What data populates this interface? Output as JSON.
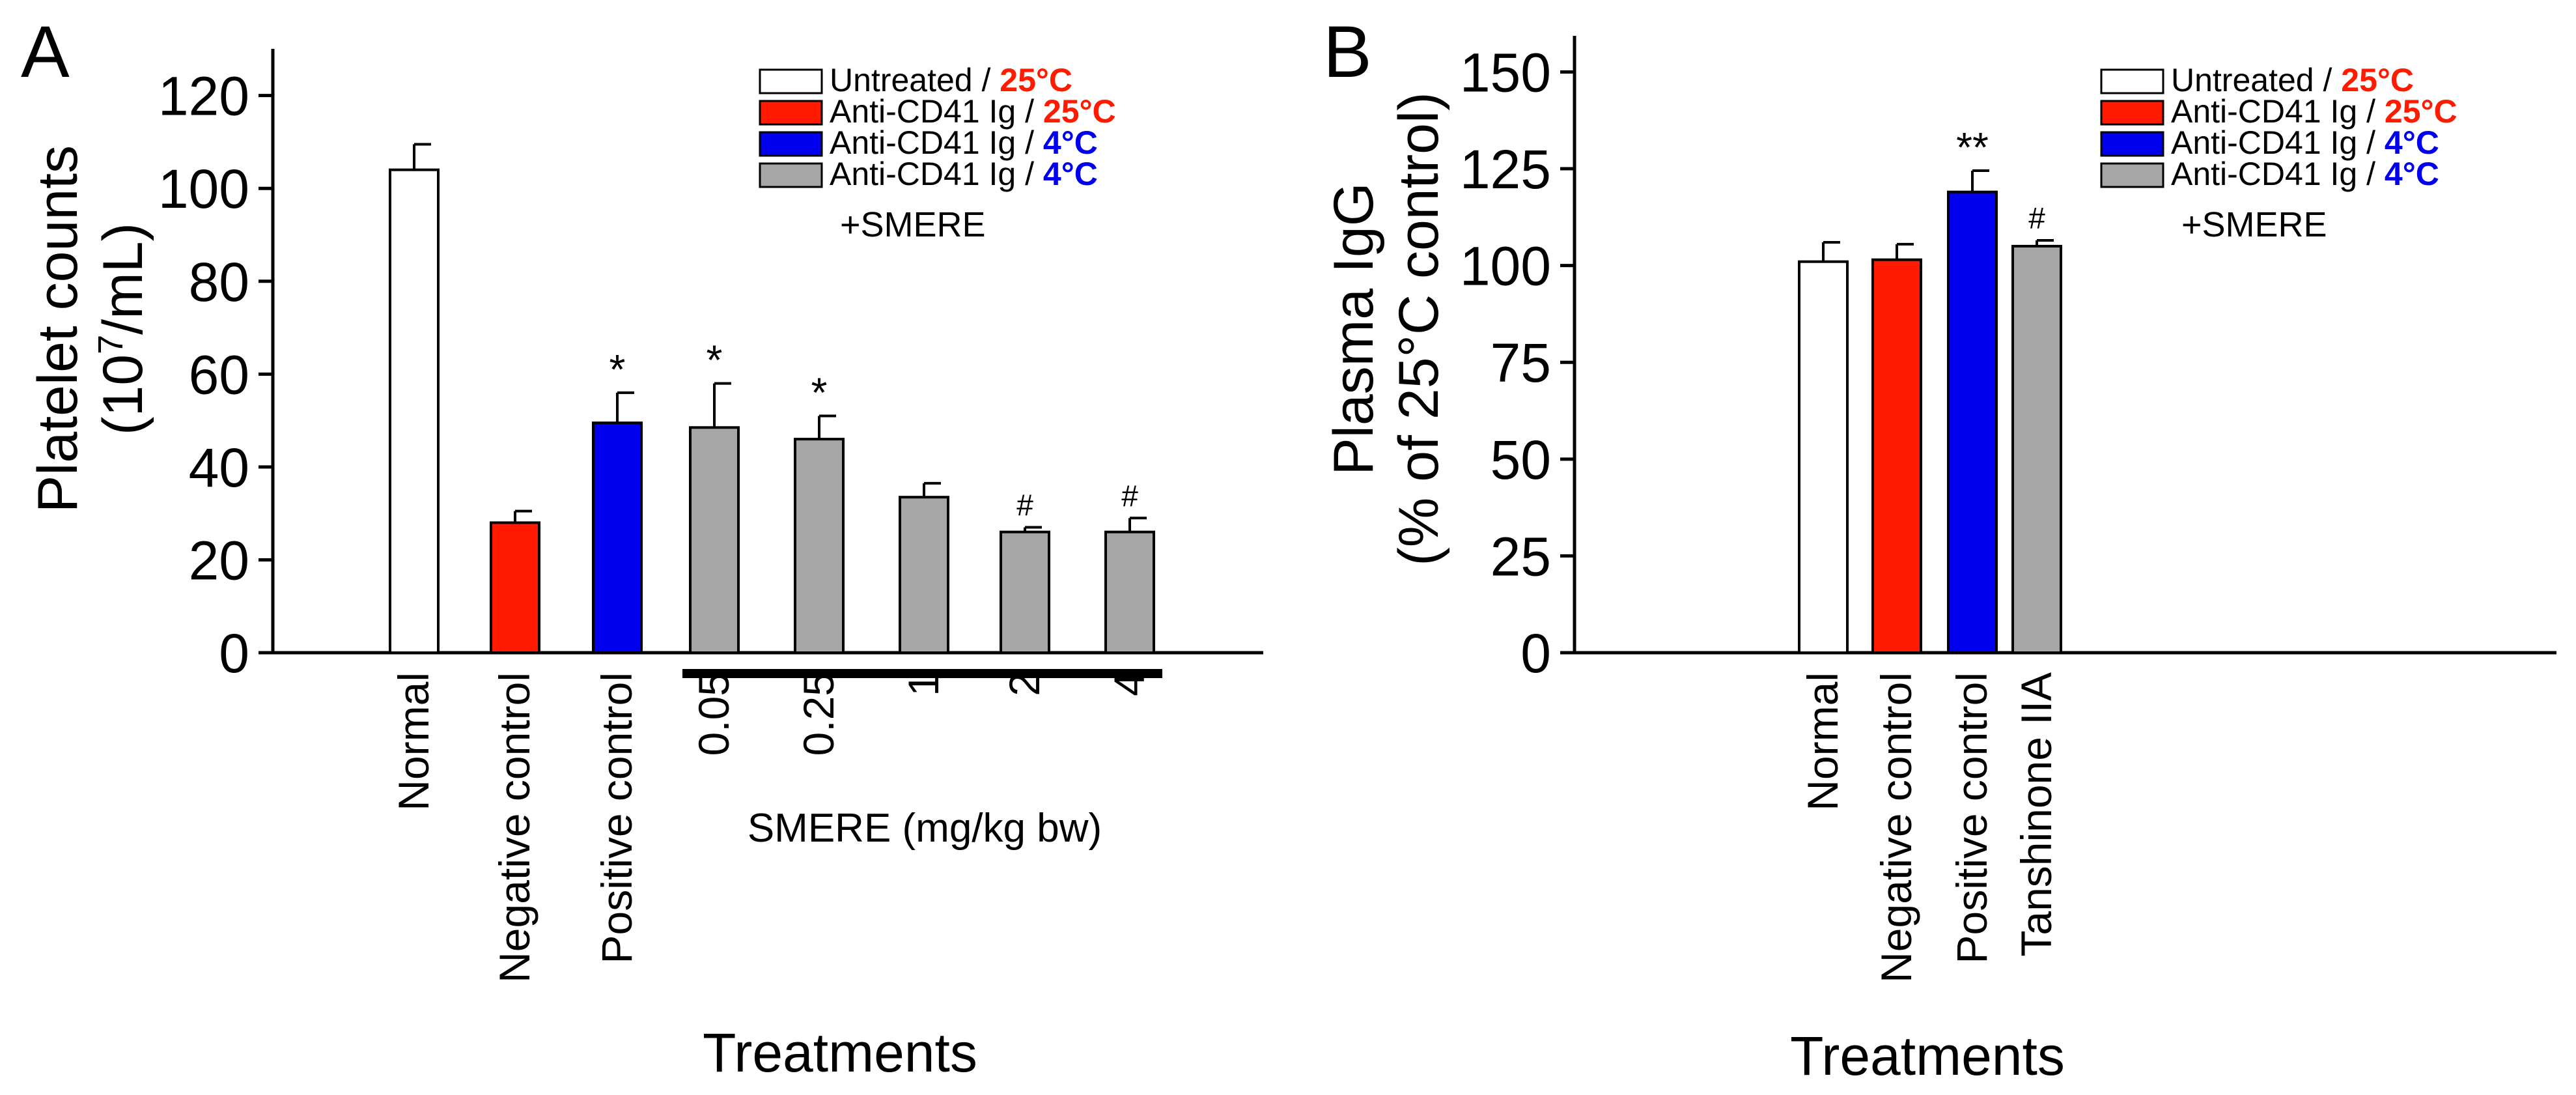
{
  "chart_data": [
    {
      "panel_label": "A",
      "type": "bar",
      "ylabel_line1": "Platelet counts",
      "ylabel_line2_pre": "(10",
      "ylabel_line2_sup": "7",
      "ylabel_line2_post": "/mL)",
      "xlabel": "Treatments",
      "ylim": [
        0,
        125
      ],
      "yticks": [
        "0",
        "20",
        "40",
        "60",
        "80",
        "100",
        "120"
      ],
      "categories": [
        "Normal",
        "Negative control",
        "Positive control",
        "0.05",
        "0.25",
        "1",
        "2",
        "4"
      ],
      "values": [
        104,
        28,
        49.5,
        48.5,
        46,
        33.5,
        26,
        26
      ],
      "errors": [
        5.5,
        2.5,
        6.5,
        9.5,
        5,
        3,
        1,
        3
      ],
      "colors": [
        "#ffffff",
        "#ff1a00",
        "#0000ee",
        "#a6a6a6",
        "#a6a6a6",
        "#a6a6a6",
        "#a6a6a6",
        "#a6a6a6"
      ],
      "annotations": [
        "",
        "",
        "*",
        "*",
        "*",
        "",
        "#",
        "#"
      ],
      "group_label": "SMERE (mg/kg bw)",
      "legend": [
        {
          "label": "Untreated /",
          "temp": "25°C",
          "temp_color": "#ff1a00",
          "fill": "#ffffff"
        },
        {
          "label": "Anti-CD41 Ig /",
          "temp": "25°C",
          "temp_color": "#ff1a00",
          "fill": "#ff1a00"
        },
        {
          "label": "Anti-CD41 Ig /",
          "temp": "4°C",
          "temp_color": "#0000ee",
          "fill": "#0000ee"
        },
        {
          "label": "Anti-CD41 Ig /",
          "temp": "4°C",
          "temp_color": "#0000ee",
          "fill": "#a6a6a6"
        }
      ],
      "legend_extra": "+SMERE"
    },
    {
      "panel_label": "B",
      "type": "bar",
      "ylabel_line1": "Plasma IgG",
      "ylabel_line2": "(% of 25°C control)",
      "xlabel": "Treatments",
      "ylim": [
        0,
        160
      ],
      "yticks": [
        "0",
        "25",
        "50",
        "75",
        "100",
        "125",
        "150"
      ],
      "categories": [
        "Normal",
        "Negative control",
        "Positive control",
        "Tanshinone IIA"
      ],
      "values": [
        101,
        101.5,
        119,
        105
      ],
      "errors": [
        5,
        4,
        5.5,
        1.5
      ],
      "colors": [
        "#ffffff",
        "#ff1a00",
        "#0000ee",
        "#a6a6a6"
      ],
      "annotations": [
        "",
        "",
        "**",
        "#"
      ],
      "legend": [
        {
          "label": "Untreated /",
          "temp": "25°C",
          "temp_color": "#ff1a00",
          "fill": "#ffffff"
        },
        {
          "label": "Anti-CD41 Ig /",
          "temp": "25°C",
          "temp_color": "#ff1a00",
          "fill": "#ff1a00"
        },
        {
          "label": "Anti-CD41 Ig /",
          "temp": "4°C",
          "temp_color": "#0000ee",
          "fill": "#0000ee"
        },
        {
          "label": "Anti-CD41 Ig /",
          "temp": "4°C",
          "temp_color": "#0000ee",
          "fill": "#a6a6a6"
        }
      ],
      "legend_extra": "+SMERE"
    }
  ]
}
